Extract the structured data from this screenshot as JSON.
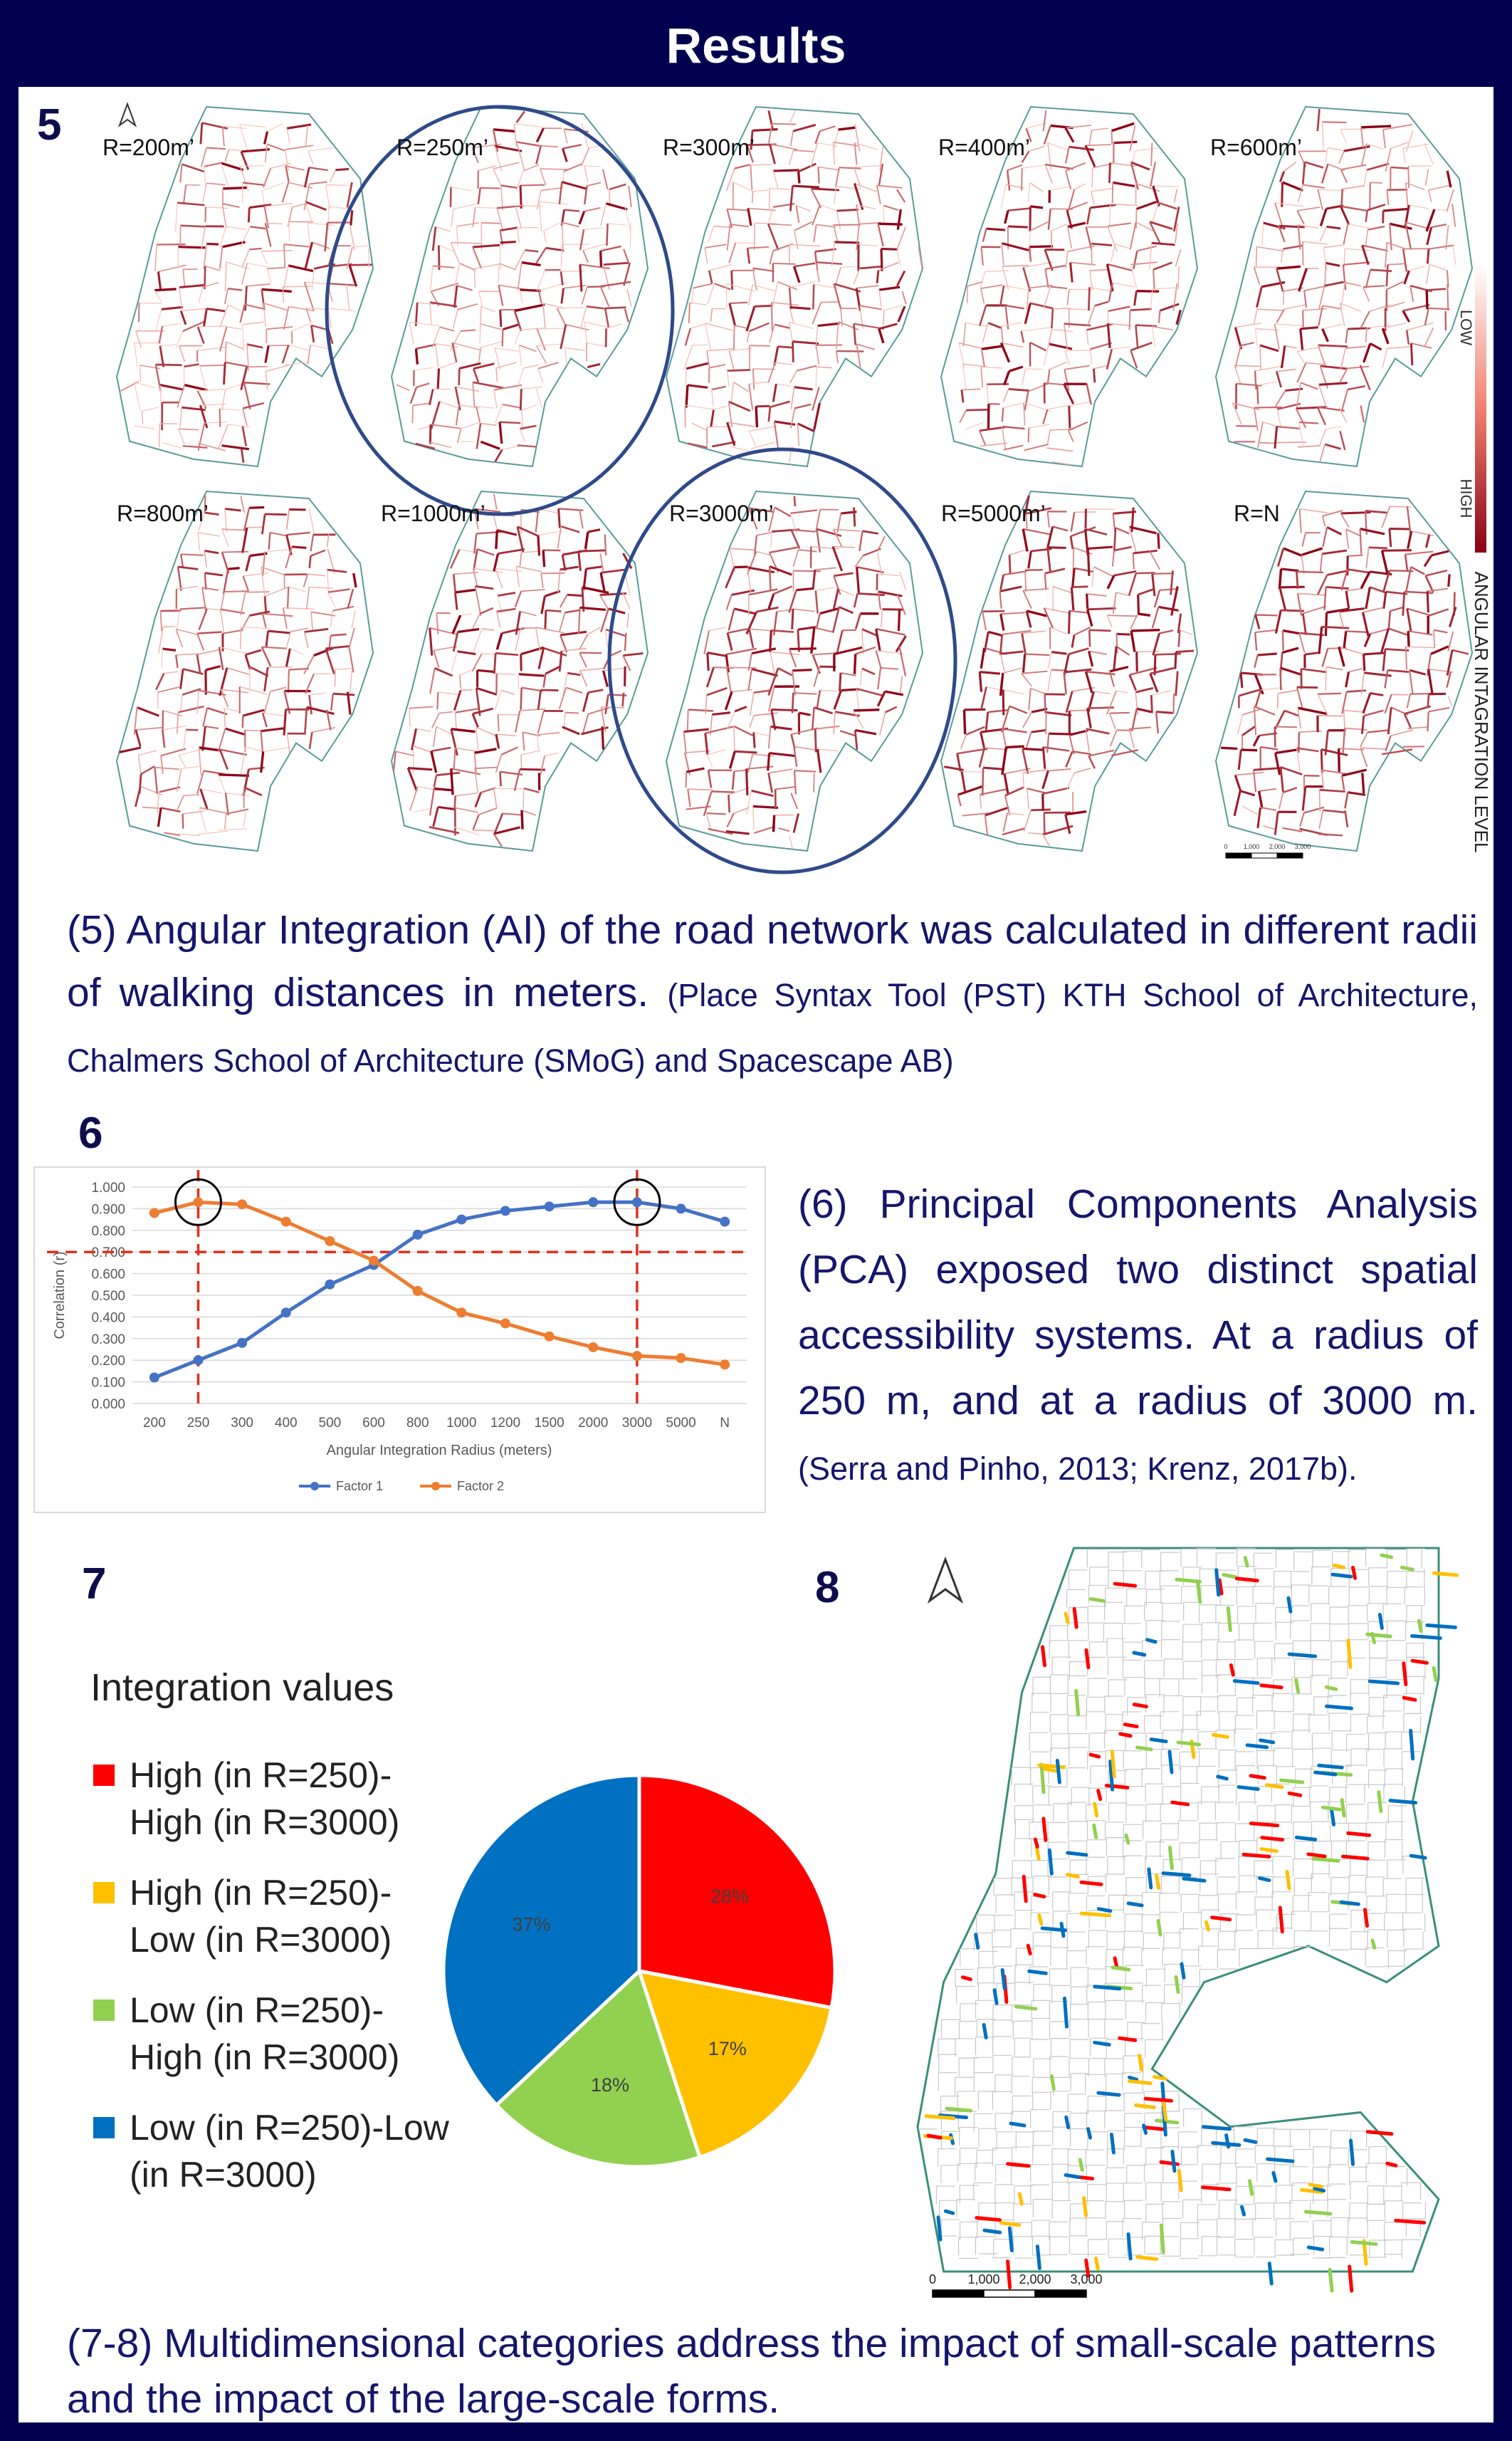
{
  "header": {
    "title": "Results"
  },
  "figure5": {
    "number": "5",
    "map_labels": [
      "R=200m’",
      "R=250m’",
      "R=300m’",
      "R=400m’",
      "R=600m’",
      "R=800m’",
      "R=1000m’",
      "R=3000m’",
      "R=5000m’",
      "R=N"
    ],
    "legend": {
      "low": "LOW",
      "high": "HIGH",
      "title": "ANGULAR INTAGRATION LEVEL"
    },
    "scale_labels": [
      "0",
      "1,000",
      "2,000",
      "3,000"
    ]
  },
  "caption5": {
    "text": "(5) Angular Integration (AI) of the road network was calculated in different radii of walking distances in meters.",
    "source": "(Place Syntax Tool (PST) KTH School of Architecture, Chalmers School of Architecture (SMoG) and Spacescape AB)"
  },
  "figure6": {
    "number": "6"
  },
  "caption6": {
    "text": "(6) Principal Components Analysis (PCA) exposed two distinct spatial accessibility systems. At a radius of 250 m, and at a radius of 3000 m.",
    "source": "(Serra and Pinho, 2013; Krenz, 2017b)."
  },
  "figure7": {
    "number": "7"
  },
  "figure8": {
    "number": "8",
    "scale_labels": [
      "0",
      "1,000",
      "2,000",
      "3,000"
    ]
  },
  "caption78": {
    "text": "(7-8) Multidimensional categories address the impact of small-scale patterns and the impact of the large-scale forms."
  },
  "chart_data": [
    {
      "type": "line",
      "y_label": "Correlation (r)",
      "x_label": "Angular Integration Radius (meters)",
      "categories": [
        "200",
        "250",
        "300",
        "400",
        "500",
        "600",
        "800",
        "1000",
        "1200",
        "1500",
        "2000",
        "3000",
        "5000",
        "N"
      ],
      "series": [
        {
          "name": "Factor 1",
          "color": "#4472c4",
          "values": [
            0.12,
            0.2,
            0.28,
            0.42,
            0.55,
            0.64,
            0.78,
            0.85,
            0.89,
            0.91,
            0.93,
            0.93,
            0.9,
            0.84
          ]
        },
        {
          "name": "Factor 2",
          "color": "#ed7d31",
          "values": [
            0.88,
            0.93,
            0.92,
            0.84,
            0.75,
            0.66,
            0.52,
            0.42,
            0.37,
            0.31,
            0.26,
            0.22,
            0.21,
            0.18
          ]
        }
      ],
      "ylim": [
        0,
        1
      ],
      "yticks": [
        {
          "value": 0,
          "label": "0.000"
        },
        {
          "value": 0.1,
          "label": "0.100"
        },
        {
          "value": 0.2,
          "label": "0.200"
        },
        {
          "value": 0.3,
          "label": "0.300"
        },
        {
          "value": 0.4,
          "label": "0.400"
        },
        {
          "value": 0.5,
          "label": "0.500"
        },
        {
          "value": 0.6,
          "label": "0.600"
        },
        {
          "value": 0.7,
          "label": "0.700"
        },
        {
          "value": 0.8,
          "label": "0.800"
        },
        {
          "value": 0.9,
          "label": "0.900"
        },
        {
          "value": 1,
          "label": "1.000"
        }
      ],
      "grid": true,
      "reference_lines": {
        "y": 0.7,
        "x": [
          "250",
          "3000"
        ],
        "color": "#e0301e"
      },
      "legend": "bottom"
    },
    {
      "type": "pie",
      "title": "Integration values",
      "categories": [
        "High (in R=250)-High (in R=3000)",
        "High (in R=250)-Low (in R=3000)",
        "Low (in R=250)-High (in R=3000)",
        "Low (in R=250)-Low (in R=3000)"
      ],
      "values": [
        28,
        17,
        18,
        37
      ],
      "value_labels": [
        "28%",
        "17%",
        "18%",
        "37%"
      ],
      "colors": [
        "#ff0000",
        "#ffc000",
        "#92d050",
        "#0070c0"
      ],
      "legend": "left"
    }
  ]
}
